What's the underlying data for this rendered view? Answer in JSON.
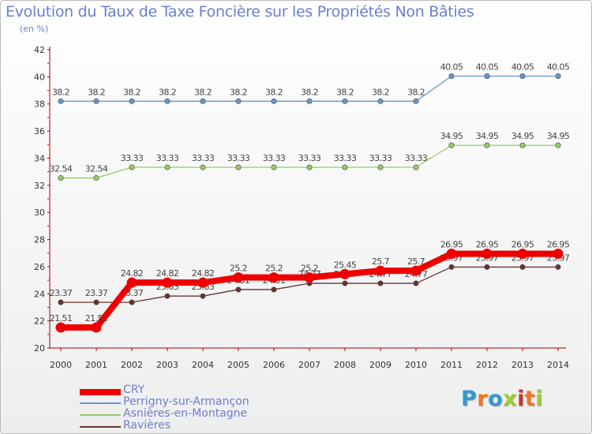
{
  "title": "Evolution du Taux de Taxe Foncière sur les Propriétés Non Bâties",
  "unit": "(en %)",
  "logo": "Proxiti",
  "chart_data": {
    "type": "line",
    "title": "Evolution du Taux de Taxe Foncière sur les Propriétés Non Bâties",
    "ylabel": "(en %)",
    "xlabel": "",
    "ylim": [
      20,
      42
    ],
    "yticks": [
      20,
      22,
      24,
      26,
      28,
      30,
      32,
      34,
      36,
      38,
      40,
      42
    ],
    "grid": false,
    "legend_position": "bottom-left",
    "categories": [
      "2000",
      "2001",
      "2002",
      "2003",
      "2004",
      "2005",
      "2006",
      "2007",
      "2008",
      "2009",
      "2010",
      "2011",
      "2012",
      "2013",
      "2014"
    ],
    "series": [
      {
        "name": "Perrigny-sur-Armançon",
        "color": "#6699cc",
        "values": [
          38.2,
          38.2,
          38.2,
          38.2,
          38.2,
          38.2,
          38.2,
          38.2,
          38.2,
          38.2,
          38.2,
          40.05,
          40.05,
          40.05,
          40.05
        ],
        "labels": [
          "38.2",
          "38.2",
          "38.2",
          "38.2",
          "38.2",
          "38.2",
          "38.2",
          "38.2",
          "38.2",
          "38.2",
          "38.2",
          "40.05",
          "40.05",
          "40.05",
          "40.05"
        ]
      },
      {
        "name": "Asnières-en-Montagne",
        "color": "#99cc66",
        "values": [
          32.54,
          32.54,
          33.33,
          33.33,
          33.33,
          33.33,
          33.33,
          33.33,
          33.33,
          33.33,
          33.33,
          34.95,
          34.95,
          34.95,
          34.95
        ],
        "labels": [
          "32.54",
          "32.54",
          "33.33",
          "33.33",
          "33.33",
          "33.33",
          "33.33",
          "33.33",
          "33.33",
          "33.33",
          "33.33",
          "34.95",
          "34.95",
          "34.95",
          "34.95"
        ]
      },
      {
        "name": "Ravières",
        "color": "#663333",
        "values": [
          23.37,
          23.37,
          23.37,
          23.83,
          23.83,
          24.31,
          24.31,
          24.77,
          24.77,
          24.77,
          24.77,
          25.97,
          25.97,
          25.97,
          25.97
        ],
        "labels": [
          "23.37",
          "23.37",
          "23.37",
          "23.83",
          "23.83",
          "24.31",
          "24.31",
          "24.77",
          "24.77",
          "24.77",
          "24.77",
          "25.97",
          "25.97",
          "25.97",
          "25.97"
        ]
      },
      {
        "name": "CRY",
        "color": "#ee0000",
        "values": [
          21.51,
          21.51,
          24.82,
          24.82,
          24.82,
          25.2,
          25.2,
          25.2,
          25.45,
          25.7,
          25.7,
          26.95,
          26.95,
          26.95,
          26.95
        ],
        "labels": [
          "21.51",
          "21.51",
          "24.82",
          "24.82",
          "24.82",
          "25.2",
          "25.2",
          "25.2",
          "25.45",
          "25.7",
          "25.7",
          "26.95",
          "26.95",
          "26.95",
          "26.95"
        ]
      }
    ],
    "legend": [
      {
        "name": "CRY",
        "color": "#ee0000"
      },
      {
        "name": "Perrigny-sur-Armançon",
        "color": "#6699cc"
      },
      {
        "name": "Asnières-en-Montagne",
        "color": "#99cc66"
      },
      {
        "name": "Ravières",
        "color": "#663333"
      }
    ]
  }
}
